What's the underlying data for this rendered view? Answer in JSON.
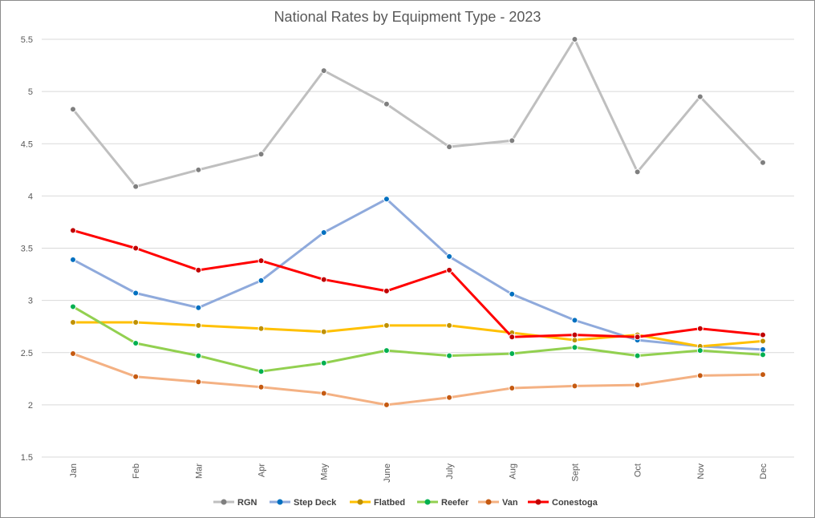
{
  "chart_data": {
    "type": "line",
    "title": "National Rates by Equipment Type - 2023",
    "xlabel": "",
    "ylabel": "",
    "categories": [
      "Jan",
      "Feb",
      "Mar",
      "Apr",
      "May",
      "June",
      "July",
      "Aug",
      "Sept",
      "Oct",
      "Nov",
      "Dec"
    ],
    "ylim": [
      1.5,
      5.5
    ],
    "yticks": [
      "1.5",
      "2",
      "2.5",
      "3",
      "3.5",
      "4",
      "4.5",
      "5",
      "5.5"
    ],
    "grid": true,
    "legend_position": "bottom",
    "series": [
      {
        "name": "RGN",
        "line_color": "#bfbfbf",
        "marker_color": "#7f7f7f",
        "values": [
          4.83,
          4.09,
          4.25,
          4.4,
          5.2,
          4.88,
          4.47,
          4.53,
          5.5,
          4.23,
          4.95,
          4.32
        ]
      },
      {
        "name": "Step Deck",
        "line_color": "#8faadc",
        "marker_color": "#0070c0",
        "values": [
          3.39,
          3.07,
          2.93,
          3.19,
          3.65,
          3.97,
          3.42,
          3.06,
          2.81,
          2.62,
          2.56,
          2.53
        ]
      },
      {
        "name": "Flatbed",
        "line_color": "#ffc000",
        "marker_color": "#bf9000",
        "values": [
          2.79,
          2.79,
          2.76,
          2.73,
          2.7,
          2.76,
          2.76,
          2.69,
          2.62,
          2.67,
          2.56,
          2.61
        ]
      },
      {
        "name": "Reefer",
        "line_color": "#92d050",
        "marker_color": "#00b050",
        "values": [
          2.94,
          2.59,
          2.47,
          2.32,
          2.4,
          2.52,
          2.47,
          2.49,
          2.55,
          2.47,
          2.52,
          2.48
        ]
      },
      {
        "name": "Van",
        "line_color": "#f4b183",
        "marker_color": "#c55a11",
        "values": [
          2.49,
          2.27,
          2.22,
          2.17,
          2.11,
          2.0,
          2.07,
          2.16,
          2.18,
          2.19,
          2.28,
          2.29
        ]
      },
      {
        "name": "Conestoga",
        "line_color": "#ff0000",
        "marker_color": "#c00000",
        "values": [
          3.67,
          3.5,
          3.29,
          3.38,
          3.2,
          3.09,
          3.29,
          2.65,
          2.67,
          2.65,
          2.73,
          2.67
        ]
      }
    ]
  }
}
